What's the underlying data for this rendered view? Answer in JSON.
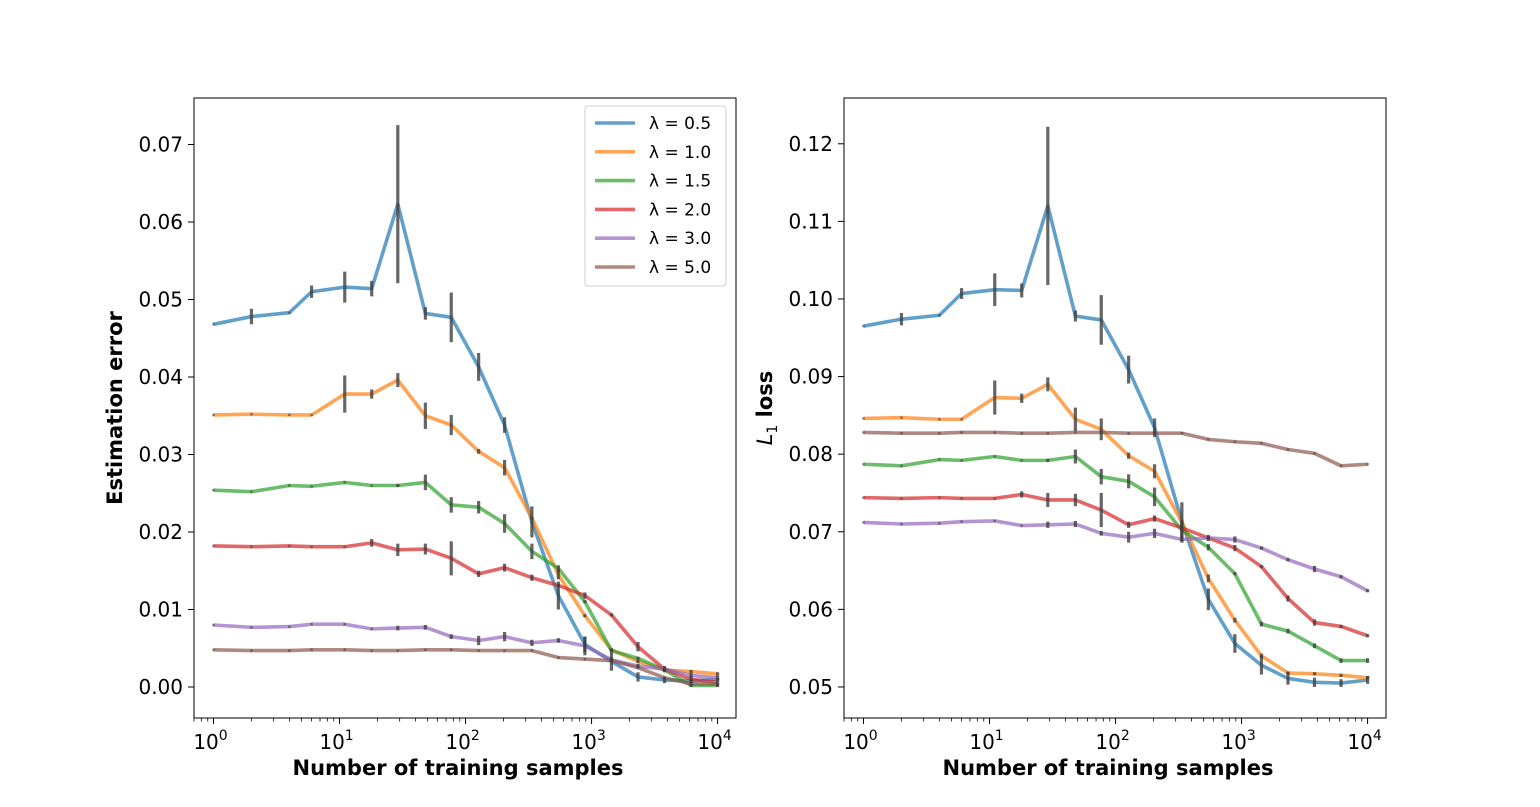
{
  "chart_data": [
    {
      "type": "line",
      "xscale": "log",
      "xlabel": "Number of training samples",
      "ylabel": "Estimation error",
      "ylabel_sub": "",
      "xlim": [
        0.7,
        14000
      ],
      "ylim": [
        -0.004,
        0.076
      ],
      "yticks": [
        0.0,
        0.01,
        0.02,
        0.03,
        0.04,
        0.05,
        0.06,
        0.07
      ],
      "ytick_labels": [
        "0.00",
        "0.01",
        "0.02",
        "0.03",
        "0.04",
        "0.05",
        "0.06",
        "0.07"
      ],
      "xticks": [
        1,
        10,
        100,
        1000,
        10000
      ],
      "xtick_labels": [
        {
          "base": "10",
          "exp": "0"
        },
        {
          "base": "10",
          "exp": "1"
        },
        {
          "base": "10",
          "exp": "2"
        },
        {
          "base": "10",
          "exp": "3"
        },
        {
          "base": "10",
          "exp": "4"
        }
      ],
      "legend_position": "top-right",
      "x": [
        1,
        2,
        4,
        6,
        11,
        18,
        29,
        48,
        77,
        127,
        204,
        336,
        545,
        885,
        1438,
        2335,
        3792,
        6158,
        10000
      ],
      "series": [
        {
          "name": "λ = 0.5",
          "color": "#1f77b4",
          "values": [
            0.0468,
            0.0478,
            0.0483,
            0.051,
            0.0516,
            0.0514,
            0.0623,
            0.0482,
            0.0477,
            0.0413,
            0.0338,
            0.0213,
            0.0118,
            0.0055,
            0.0033,
            0.0013,
            0.0009,
            0.0008,
            0.001
          ],
          "errors": [
            0,
            0.001,
            0,
            0.0008,
            0.002,
            0.001,
            0.0102,
            0.0008,
            0.0032,
            0.0018,
            0.001,
            0.002,
            0.0018,
            0.001,
            0.0012,
            0.0006,
            0.0004,
            0.0003,
            0.0002
          ]
        },
        {
          "name": "λ = 1.0",
          "color": "#ff7f0e",
          "values": [
            0.0351,
            0.0352,
            0.0351,
            0.0351,
            0.0378,
            0.0378,
            0.0396,
            0.035,
            0.0338,
            0.0304,
            0.0283,
            0.0218,
            0.0145,
            0.0092,
            0.0048,
            0.0033,
            0.0022,
            0.002,
            0.0017
          ],
          "errors": [
            0,
            0,
            0,
            0,
            0.0024,
            0.0006,
            0.0009,
            0.0017,
            0.0013,
            0.0003,
            0.001,
            0.0002,
            0.0006,
            0.0002,
            0.0002,
            0.0002,
            0.0002,
            0.0002,
            0.0002
          ]
        },
        {
          "name": "λ = 1.5",
          "color": "#2ca02c",
          "values": [
            0.0254,
            0.0252,
            0.026,
            0.0259,
            0.0264,
            0.026,
            0.026,
            0.0264,
            0.0235,
            0.0232,
            0.0211,
            0.0175,
            0.0153,
            0.011,
            0.0047,
            0.0037,
            0.0022,
            0.0002,
            0.0002
          ],
          "errors": [
            0,
            0,
            0,
            0,
            0,
            0,
            0.0002,
            0.001,
            0.001,
            0.0008,
            0.0012,
            0.001,
            0.0004,
            0.0002,
            0.0002,
            0.0002,
            0.0002,
            0.0002,
            0.0002
          ]
        },
        {
          "name": "λ = 2.0",
          "color": "#d62728",
          "values": [
            0.0182,
            0.0181,
            0.0182,
            0.0181,
            0.0181,
            0.0186,
            0.0177,
            0.0178,
            0.0166,
            0.0146,
            0.0154,
            0.0141,
            0.0131,
            0.0118,
            0.0093,
            0.0052,
            0.0023,
            0.001,
            0.0006
          ],
          "errors": [
            0,
            0,
            0,
            0,
            0,
            0.0005,
            0.0008,
            0.0007,
            0.0022,
            0.0004,
            0.0005,
            0.0004,
            0.0002,
            0.0004,
            0.0002,
            0.0006,
            0.0004,
            0.0004,
            0.0004
          ]
        },
        {
          "name": "λ = 3.0",
          "color": "#9467bd",
          "values": [
            0.008,
            0.0077,
            0.0078,
            0.0081,
            0.0081,
            0.0075,
            0.0076,
            0.0077,
            0.0065,
            0.006,
            0.0065,
            0.0057,
            0.006,
            0.0053,
            0.0035,
            0.0027,
            0.0023,
            0.0015,
            0.0012
          ],
          "errors": [
            0,
            0,
            0,
            0,
            0,
            0,
            0.0003,
            0.0003,
            0.0003,
            0.0006,
            0.0006,
            0.0004,
            0.0003,
            0.0012,
            0.0003,
            0.0003,
            0.0003,
            0.0003,
            0.0003
          ]
        },
        {
          "name": "λ = 5.0",
          "color": "#8c564b",
          "values": [
            0.0048,
            0.0047,
            0.0047,
            0.0048,
            0.0048,
            0.0047,
            0.0047,
            0.0048,
            0.0048,
            0.0047,
            0.0047,
            0.0047,
            0.0038,
            0.0036,
            0.0034,
            0.0025,
            0.0012,
            0.0004,
            0.0004
          ],
          "errors": [
            0,
            0,
            0,
            0,
            0,
            0,
            0,
            0,
            0,
            0,
            0,
            0,
            0,
            0,
            0,
            0,
            0,
            0,
            0
          ]
        }
      ]
    },
    {
      "type": "line",
      "xscale": "log",
      "xlabel": "Number of training samples",
      "ylabel": "L",
      "ylabel_sub": "1",
      "ylabel_suffix": " loss",
      "xlim": [
        0.7,
        14000
      ],
      "ylim": [
        0.046,
        0.1259
      ],
      "yticks": [
        0.05,
        0.06,
        0.07,
        0.08,
        0.09,
        0.1,
        0.11,
        0.12
      ],
      "ytick_labels": [
        "0.05",
        "0.06",
        "0.07",
        "0.08",
        "0.09",
        "0.10",
        "0.11",
        "0.12"
      ],
      "xticks": [
        1,
        10,
        100,
        1000,
        10000
      ],
      "xtick_labels": [
        {
          "base": "10",
          "exp": "0"
        },
        {
          "base": "10",
          "exp": "1"
        },
        {
          "base": "10",
          "exp": "2"
        },
        {
          "base": "10",
          "exp": "3"
        },
        {
          "base": "10",
          "exp": "4"
        }
      ],
      "x": [
        1,
        2,
        4,
        6,
        11,
        18,
        29,
        48,
        77,
        127,
        204,
        336,
        545,
        885,
        1438,
        2335,
        3792,
        6158,
        10000
      ],
      "series": [
        {
          "name": "λ = 0.5",
          "color": "#1f77b4",
          "values": [
            0.0965,
            0.0974,
            0.0979,
            0.1007,
            0.1012,
            0.1011,
            0.112,
            0.0978,
            0.0973,
            0.0909,
            0.0834,
            0.0713,
            0.0613,
            0.0556,
            0.0528,
            0.0511,
            0.0506,
            0.0505,
            0.0509
          ],
          "errors": [
            0,
            0.0008,
            0,
            0.0007,
            0.0021,
            0.0009,
            0.0102,
            0.0007,
            0.0032,
            0.0018,
            0.0012,
            0.0025,
            0.0014,
            0.0012,
            0.0012,
            0.0008,
            0.0006,
            0.0005,
            0.0005
          ]
        },
        {
          "name": "λ = 1.0",
          "color": "#ff7f0e",
          "values": [
            0.0846,
            0.0847,
            0.0845,
            0.0845,
            0.0873,
            0.0872,
            0.089,
            0.0845,
            0.0832,
            0.0798,
            0.0778,
            0.0712,
            0.064,
            0.0586,
            0.054,
            0.0518,
            0.0517,
            0.0515,
            0.0512
          ],
          "errors": [
            0,
            0,
            0,
            0,
            0.0022,
            0.0006,
            0.0009,
            0.0015,
            0.0014,
            0.0004,
            0.0009,
            0.0003,
            0.0005,
            0.0003,
            0.0003,
            0.0002,
            0.0002,
            0.0002,
            0.0002
          ]
        },
        {
          "name": "λ = 1.5",
          "color": "#2ca02c",
          "values": [
            0.0787,
            0.0785,
            0.0793,
            0.0792,
            0.0797,
            0.0792,
            0.0792,
            0.0797,
            0.0771,
            0.0765,
            0.0745,
            0.0702,
            0.068,
            0.0646,
            0.0581,
            0.0572,
            0.0553,
            0.0534,
            0.0534
          ],
          "errors": [
            0,
            0,
            0,
            0,
            0,
            0,
            0.0002,
            0.0009,
            0.001,
            0.0009,
            0.0012,
            0.0009,
            0.0004,
            0.0002,
            0.0003,
            0.0003,
            0.0003,
            0.0003,
            0.0003
          ]
        },
        {
          "name": "λ = 2.0",
          "color": "#d62728",
          "values": [
            0.0744,
            0.0743,
            0.0744,
            0.0743,
            0.0743,
            0.0748,
            0.0741,
            0.0741,
            0.0728,
            0.0709,
            0.0717,
            0.0705,
            0.0692,
            0.0679,
            0.0655,
            0.0614,
            0.0583,
            0.0578,
            0.0566
          ],
          "errors": [
            0,
            0,
            0,
            0,
            0,
            0.0004,
            0.0009,
            0.0008,
            0.0022,
            0.0004,
            0.0004,
            0.0004,
            0.0002,
            0.0004,
            0.0002,
            0.0004,
            0.0004,
            0.0002,
            0.0002
          ]
        },
        {
          "name": "λ = 3.0",
          "color": "#9467bd",
          "values": [
            0.0712,
            0.071,
            0.0711,
            0.0713,
            0.0714,
            0.0708,
            0.0709,
            0.071,
            0.0698,
            0.0693,
            0.0698,
            0.069,
            0.0692,
            0.069,
            0.0679,
            0.0664,
            0.0652,
            0.0642,
            0.0624
          ],
          "errors": [
            0,
            0,
            0,
            0,
            0,
            0,
            0.0004,
            0.0004,
            0.0003,
            0.0007,
            0.0006,
            0.0004,
            0.0004,
            0.0004,
            0.0002,
            0.0002,
            0.0004,
            0.0002,
            0.0002
          ]
        },
        {
          "name": "λ = 5.0",
          "color": "#8c564b",
          "values": [
            0.0828,
            0.0827,
            0.0827,
            0.0828,
            0.0828,
            0.0827,
            0.0827,
            0.0828,
            0.0828,
            0.0827,
            0.0827,
            0.0827,
            0.0819,
            0.0816,
            0.0814,
            0.0806,
            0.0801,
            0.0785,
            0.0787
          ],
          "errors": [
            0,
            0,
            0,
            0,
            0,
            0,
            0,
            0,
            0,
            0,
            0,
            0,
            0,
            0,
            0,
            0,
            0,
            0,
            0
          ]
        }
      ]
    }
  ]
}
